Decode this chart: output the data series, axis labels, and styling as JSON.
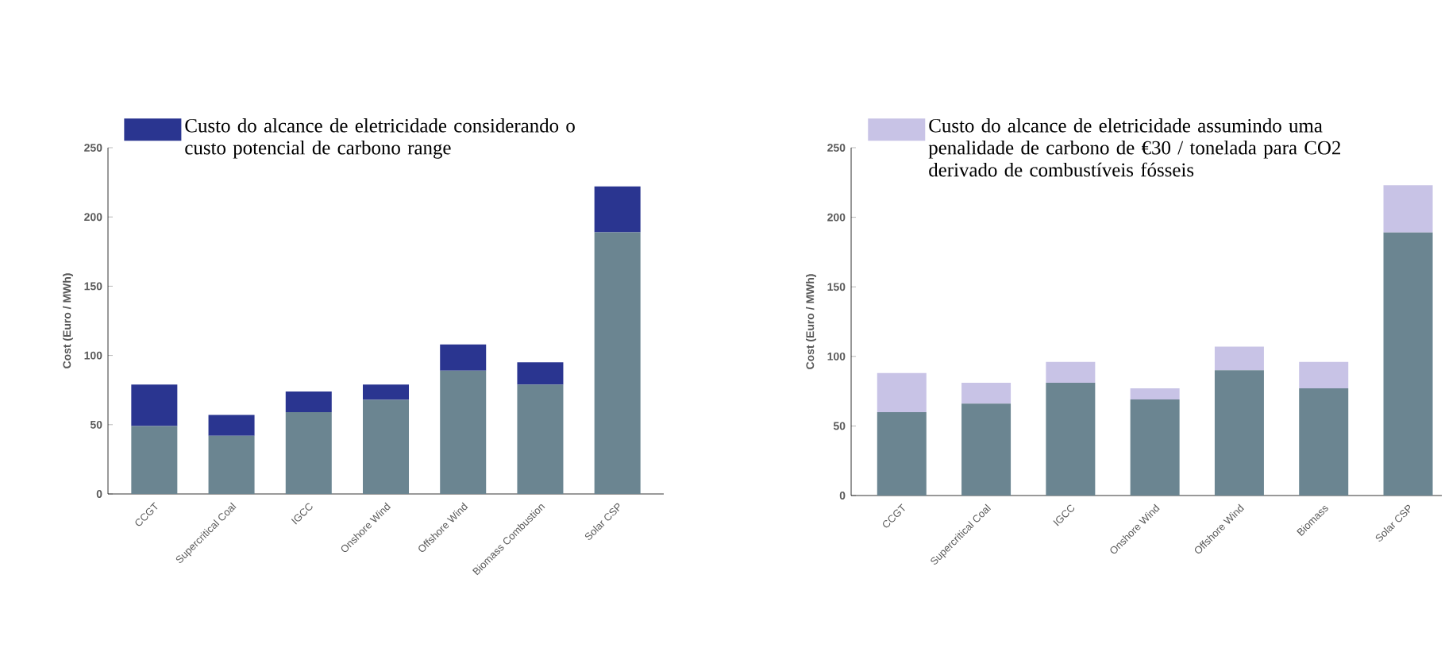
{
  "chart_data": [
    {
      "type": "bar",
      "stacked": true,
      "legend": "top",
      "ylabel": "Cost (Euro / MWh)",
      "ylim": [
        0,
        250
      ],
      "yticks": [
        0,
        50,
        100,
        150,
        200,
        250
      ],
      "categories": [
        "CCGT",
        "Supercritical Coal",
        "IGCC",
        "Onshore Wind",
        "Offshore Wind",
        "Biomass Combustion",
        "Solar CSP"
      ],
      "series": [
        {
          "color": "#6b8591",
          "values": [
            49,
            42,
            59,
            68,
            89,
            79,
            189
          ]
        },
        {
          "name": "Custo do alcance de eletricidade considerando o custo potencial de carbono range",
          "color": "#2a3590",
          "values": [
            30,
            15,
            15,
            11,
            19,
            16,
            33
          ]
        }
      ]
    },
    {
      "type": "bar",
      "stacked": true,
      "legend": "top",
      "ylabel": "Cost (Euro / MWh)",
      "ylim": [
        0,
        250
      ],
      "yticks": [
        0,
        50,
        100,
        150,
        200,
        250
      ],
      "categories": [
        "CCGT",
        "Supercritical Coal",
        "IGCC",
        "Onshore Wind",
        "Offshore Wind",
        "Biomass",
        "Solar CSP"
      ],
      "series": [
        {
          "color": "#6b8591",
          "values": [
            60,
            66,
            81,
            69,
            90,
            77,
            189
          ]
        },
        {
          "name": "Custo do alcance de eletricidade assumindo uma penalidade de carbono de €30 / tonelada para CO2 derivado de combustíveis fósseis",
          "color": "#c8c3e6",
          "values": [
            28,
            15,
            15,
            8,
            17,
            19,
            34
          ]
        }
      ]
    }
  ]
}
